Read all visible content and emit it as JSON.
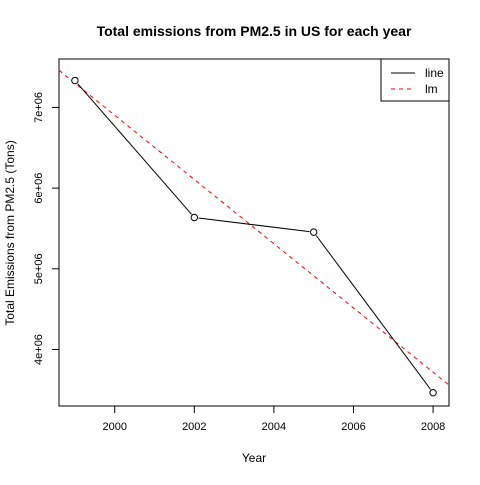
{
  "chart_data": {
    "type": "line",
    "title": "Total emissions from PM2.5 in US for each year",
    "xlabel": "Year",
    "ylabel": "Total Emissions from PM2.5 (Tons)",
    "x": [
      1999,
      2002,
      2005,
      2008
    ],
    "xlim": [
      1998.6,
      2008.4
    ],
    "ylim": [
      3300000,
      7600000
    ],
    "x_ticks": [
      2000,
      2002,
      2004,
      2006,
      2008
    ],
    "x_tick_labels": [
      "2000",
      "2002",
      "2004",
      "2006",
      "2008"
    ],
    "y_ticks": [
      4000000,
      5000000,
      6000000,
      7000000
    ],
    "y_tick_labels": [
      "4e+06",
      "5e+06",
      "6e+06",
      "7e+06"
    ],
    "grid": false,
    "legend_position": "top-right",
    "series": [
      {
        "name": "line",
        "style": "solid",
        "color": "#000000",
        "markers": "open-circle",
        "values": [
          7332967,
          5635780,
          5454703,
          3464206
        ]
      },
      {
        "name": "lm",
        "style": "dashed",
        "color": "#ff0000",
        "fit_line": [
          [
            1998.6,
            7460000
          ],
          [
            2008.4,
            3560000
          ]
        ]
      }
    ]
  }
}
